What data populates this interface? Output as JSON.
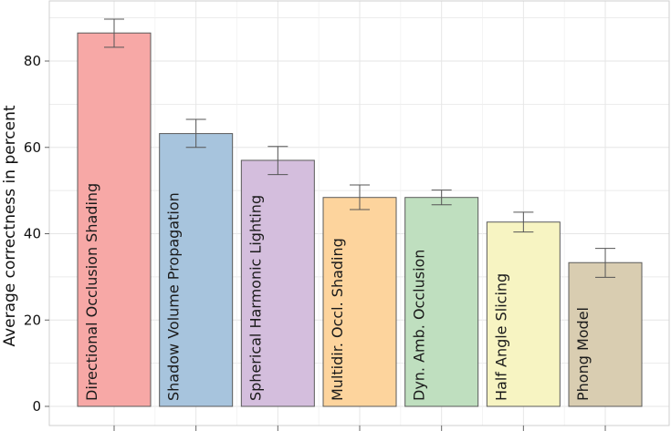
{
  "chart_data": {
    "type": "bar",
    "title": "",
    "xlabel": "",
    "ylabel": "Average correctness in percent",
    "ylim": [
      -4.5,
      93
    ],
    "yticks": [
      0,
      20,
      40,
      60,
      80
    ],
    "grid": true,
    "legend": "none",
    "categories": [
      "Directional Occlusion Shading",
      "Shadow Volume Propagation",
      "Spherical Harmonic Lighting",
      "Multidir. Occl. Shading",
      "Dyn. Amb. Occlusion",
      "Half Angle Slicing",
      "Phong Model"
    ],
    "values": [
      86.5,
      63.2,
      57.0,
      48.4,
      48.4,
      42.7,
      33.3
    ],
    "error_low": [
      83.2,
      60.0,
      53.7,
      45.6,
      46.7,
      40.4,
      29.9
    ],
    "error_high": [
      89.7,
      66.5,
      60.2,
      51.3,
      50.1,
      45.0,
      36.6
    ],
    "colors": [
      "#f7a8a6",
      "#a7c4dd",
      "#d4bedd",
      "#fdd49d",
      "#bfdfbf",
      "#f7f4c2",
      "#d9cdb1"
    ]
  }
}
